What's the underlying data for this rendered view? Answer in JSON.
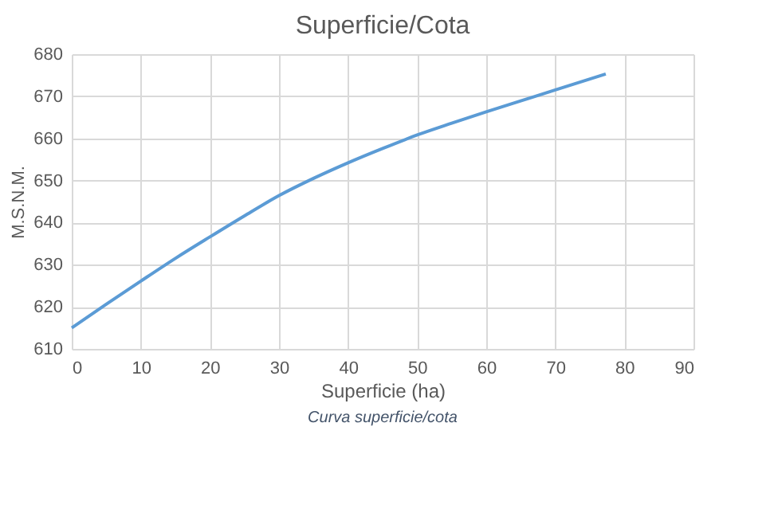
{
  "chart_data": {
    "type": "line",
    "title": "Superficie/Cota",
    "xlabel": "Superficie (ha)",
    "ylabel": "M.S.N.M.",
    "x": [
      0,
      5,
      10,
      15,
      20,
      25,
      30,
      35,
      40,
      45,
      50,
      55,
      60,
      65,
      70,
      77.3
    ],
    "series": [
      {
        "color": "#5b9bd5",
        "values": [
          615.0,
          620.6,
          626.1,
          631.5,
          636.6,
          641.6,
          646.4,
          650.5,
          654.2,
          657.6,
          660.8,
          663.6,
          666.3,
          668.9,
          671.5,
          675.3
        ]
      }
    ],
    "xlim": [
      0,
      90
    ],
    "xticks": [
      0,
      10,
      20,
      30,
      40,
      50,
      60,
      70,
      80,
      90
    ],
    "ylim": [
      610,
      680
    ],
    "yticks": [
      610,
      620,
      630,
      640,
      650,
      660,
      670,
      680
    ],
    "grid": true,
    "marker": "none",
    "line_style": "solid",
    "annotations": [
      "Curva superficie/cota"
    ]
  }
}
